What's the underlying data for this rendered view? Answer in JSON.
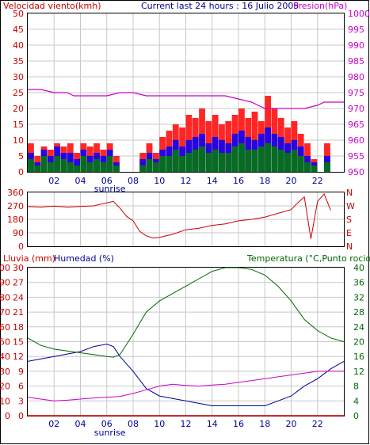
{
  "colors": {
    "wind": "#cc0000",
    "gust": "#ff0000",
    "wind_blue": "#0000ff",
    "wind_green": "#008000",
    "pressure": "#cc00cc",
    "direction": "#cc0000",
    "rain": "#cc0000",
    "humidity": "#000099",
    "temperature": "#006600",
    "dewpoint": "#cc00cc",
    "grid": "#c8c8c8",
    "frame": "#000000",
    "label_red": "#cc0000",
    "label_blue": "#000099",
    "label_green": "#006600",
    "label_magenta": "#cc00cc"
  },
  "header": {
    "wind_label": "Velocidad viento(kmh)",
    "title": "Current last 24 hours : 16 Julio 2005",
    "pressure_label": "Presion(hPa)"
  },
  "time_axis": {
    "range_hours": [
      0,
      24
    ],
    "ticks": [
      "02",
      "04",
      "06",
      "08",
      "10",
      "12",
      "14",
      "16",
      "18",
      "20",
      "22"
    ],
    "tick_hours": [
      2,
      4,
      6,
      8,
      10,
      12,
      14,
      16,
      18,
      20,
      22
    ],
    "sunrise_label": "sunrise",
    "sunrise_hour": 6
  },
  "chart_data": [
    {
      "type": "line",
      "panel": "wind-pressure",
      "y_left": {
        "label": "Velocidad viento(kmh)",
        "ylim": [
          0,
          50
        ],
        "ticks": [
          "0",
          "5",
          "10",
          "15",
          "20",
          "25",
          "30",
          "35",
          "40",
          "45",
          "50"
        ]
      },
      "y_right": {
        "label": "Presion(hPa)",
        "ylim": [
          950,
          1000
        ],
        "ticks": [
          "950",
          "955",
          "960",
          "965",
          "970",
          "975",
          "980",
          "985",
          "990",
          "995",
          "1000"
        ]
      },
      "series": [
        {
          "x": [
            0,
            1,
            2,
            3,
            3.5,
            4,
            5,
            6,
            7,
            8,
            9,
            10,
            11,
            12,
            13,
            14,
            15,
            16,
            17,
            17.5,
            18,
            19,
            20,
            21,
            22,
            22.5,
            23,
            24
          ],
          "y": [
            976,
            976,
            975,
            975,
            974,
            974,
            974,
            974,
            975,
            975,
            974,
            974,
            974,
            974,
            974,
            974,
            974,
            973,
            972,
            971,
            970,
            970,
            970,
            970,
            971,
            972,
            972,
            972
          ]
        },
        {
          "x": [
            0,
            0.5,
            1,
            1.5,
            2,
            2.5,
            3,
            3.5,
            4,
            4.5,
            5,
            5.5,
            6,
            6.5,
            7,
            7.5,
            8,
            8.5,
            9,
            9.5,
            10,
            10.5,
            11,
            11.5,
            12,
            12.5,
            13,
            13.5,
            14,
            14.5,
            15,
            15.5,
            16,
            16.5,
            17,
            17.5,
            18,
            18.5,
            19,
            19.5,
            20,
            20.5,
            21,
            21.5,
            22,
            22.5,
            23
          ],
          "y": [
            6,
            3,
            7,
            5,
            8,
            6,
            6,
            4,
            7,
            5,
            6,
            5,
            7,
            3,
            0,
            0,
            0,
            4,
            6,
            4,
            7,
            8,
            10,
            8,
            10,
            11,
            12,
            9,
            11,
            10,
            9,
            12,
            13,
            11,
            10,
            12,
            14,
            12,
            11,
            9,
            10,
            8,
            5,
            3,
            0,
            5,
            0
          ]
        },
        {
          "x": [
            0,
            0.5,
            1,
            1.5,
            2,
            2.5,
            3,
            3.5,
            4,
            4.5,
            5,
            5.5,
            6,
            6.5,
            7,
            7.5,
            8,
            8.5,
            9,
            9.5,
            10,
            10.5,
            11,
            11.5,
            12,
            12.5,
            13,
            13.5,
            14,
            14.5,
            15,
            15.5,
            16,
            16.5,
            17,
            17.5,
            18,
            18.5,
            19,
            19.5,
            20,
            20.5,
            21,
            21.5,
            22,
            22.5,
            23
          ],
          "y": [
            9,
            5,
            8,
            7,
            9,
            8,
            9,
            6,
            9,
            8,
            9,
            7,
            9,
            5,
            0,
            0,
            0,
            6,
            9,
            6,
            11,
            13,
            15,
            14,
            18,
            17,
            20,
            16,
            18,
            15,
            16,
            18,
            20,
            17,
            19,
            16,
            24,
            20,
            17,
            14,
            16,
            12,
            9,
            4,
            0,
            9,
            0
          ]
        },
        {
          "x": [
            0,
            0.5,
            1,
            1.5,
            2,
            2.5,
            3,
            3.5,
            4,
            4.5,
            5,
            5.5,
            6,
            6.5,
            7,
            7.5,
            8,
            8.5,
            9,
            9.5,
            10,
            10.5,
            11,
            11.5,
            12,
            12.5,
            13,
            13.5,
            14,
            14.5,
            15,
            15.5,
            16,
            16.5,
            17,
            17.5,
            18,
            18.5,
            19,
            19.5,
            20,
            20.5,
            21,
            21.5,
            22,
            22.5,
            23
          ],
          "y": [
            4,
            2,
            5,
            3,
            5,
            4,
            3,
            2,
            5,
            3,
            4,
            3,
            5,
            2,
            0,
            0,
            0,
            2,
            4,
            3,
            5,
            5,
            7,
            5,
            6,
            7,
            8,
            6,
            7,
            6,
            6,
            8,
            9,
            7,
            7,
            8,
            9,
            8,
            7,
            6,
            7,
            5,
            3,
            2,
            0,
            3,
            0
          ]
        }
      ]
    },
    {
      "type": "line",
      "panel": "wind-direction",
      "y_left": {
        "ylim": [
          0,
          360
        ],
        "ticks": [
          "0",
          "90",
          "180",
          "270",
          "360"
        ]
      },
      "y_right": {
        "ticks": [
          "N",
          "E",
          "S",
          "W",
          "N"
        ]
      },
      "series": [
        {
          "x": [
            0,
            1,
            2,
            3,
            4,
            5,
            6,
            6.5,
            7,
            7.5,
            8,
            8.5,
            9,
            9.5,
            10,
            11,
            12,
            13,
            14,
            15,
            16,
            17,
            18,
            19,
            20,
            20.5,
            21,
            21.5,
            22,
            22.5,
            23
          ],
          "y": [
            265,
            262,
            268,
            262,
            266,
            270,
            290,
            300,
            255,
            200,
            170,
            100,
            70,
            55,
            60,
            80,
            110,
            120,
            140,
            150,
            170,
            180,
            195,
            220,
            245,
            290,
            330,
            50,
            300,
            350,
            240
          ]
        }
      ]
    },
    {
      "type": "line",
      "panel": "rain-humidity-temperature",
      "y_left_rain": {
        "label": "Lluvia (mm)",
        "ylim": [
          0,
          100
        ],
        "ticks": [
          "0",
          "10",
          "20",
          "30",
          "40",
          "50",
          "60",
          "70",
          "80",
          "90",
          "100"
        ]
      },
      "y_left_humidity": {
        "label": "Humedad (%)",
        "ylim": [
          0,
          30
        ],
        "ticks": [
          "0",
          "3",
          "6",
          "9",
          "12",
          "15",
          "18",
          "21",
          "24",
          "27",
          "30"
        ]
      },
      "y_right_temperature": {
        "label": "Temperatura (°C,Punto rocio",
        "ylim": [
          0,
          40
        ],
        "ticks": [
          "0",
          "4",
          "8",
          "12",
          "16",
          "20",
          "24",
          "28",
          "32",
          "36",
          "40"
        ]
      },
      "series": [
        {
          "x": [
            0,
            24
          ],
          "y": [
            0,
            0
          ]
        },
        {
          "x": [
            0,
            1,
            2,
            3,
            4,
            5,
            6,
            6.5,
            7,
            8,
            9,
            10,
            11,
            12,
            13,
            14,
            15,
            16,
            17,
            18,
            19,
            20,
            20.5,
            21,
            22,
            23,
            24
          ],
          "y": [
            11,
            11.5,
            12,
            12.5,
            13,
            14,
            14.5,
            14,
            12,
            9,
            5.5,
            4,
            3.5,
            3,
            2.5,
            2,
            2,
            2,
            2,
            2,
            3,
            4,
            5,
            6,
            7.5,
            9.5,
            11
          ]
        },
        {
          "x": [
            0,
            1,
            2,
            3,
            4,
            5,
            6,
            6.5,
            7,
            8,
            9,
            10,
            11,
            12,
            13,
            14,
            15,
            16,
            17,
            18,
            19,
            20,
            21,
            22,
            23,
            24
          ],
          "y": [
            21,
            19,
            18,
            17.5,
            17,
            16.5,
            16,
            15.8,
            16.5,
            22,
            28,
            31,
            33,
            35,
            37,
            39,
            40,
            40,
            39.5,
            38,
            35,
            31,
            26,
            23,
            21,
            20
          ]
        },
        {
          "x": [
            0,
            1,
            2,
            3,
            4,
            5,
            6,
            7,
            8,
            9,
            10,
            11,
            12,
            13,
            14,
            15,
            16,
            17,
            18,
            19,
            20,
            21,
            22,
            23,
            24
          ],
          "y": [
            5,
            4.5,
            4,
            4.2,
            4.5,
            4.8,
            5,
            5.2,
            6,
            7,
            8,
            8.5,
            8.2,
            8.0,
            8.3,
            8.5,
            9,
            9.5,
            10,
            10.5,
            11,
            11.5,
            12,
            12,
            12
          ]
        }
      ]
    }
  ],
  "direction_axis": {
    "ticks": [
      "0",
      "90",
      "180",
      "270",
      "360"
    ],
    "labels": [
      "N",
      "E",
      "S",
      "W",
      "N"
    ]
  },
  "panel3_labels": {
    "rain": "Lluvia (mm)",
    "humidity": "Humedad (%)",
    "temperature": "Temperatura (°C,Punto rocio"
  }
}
